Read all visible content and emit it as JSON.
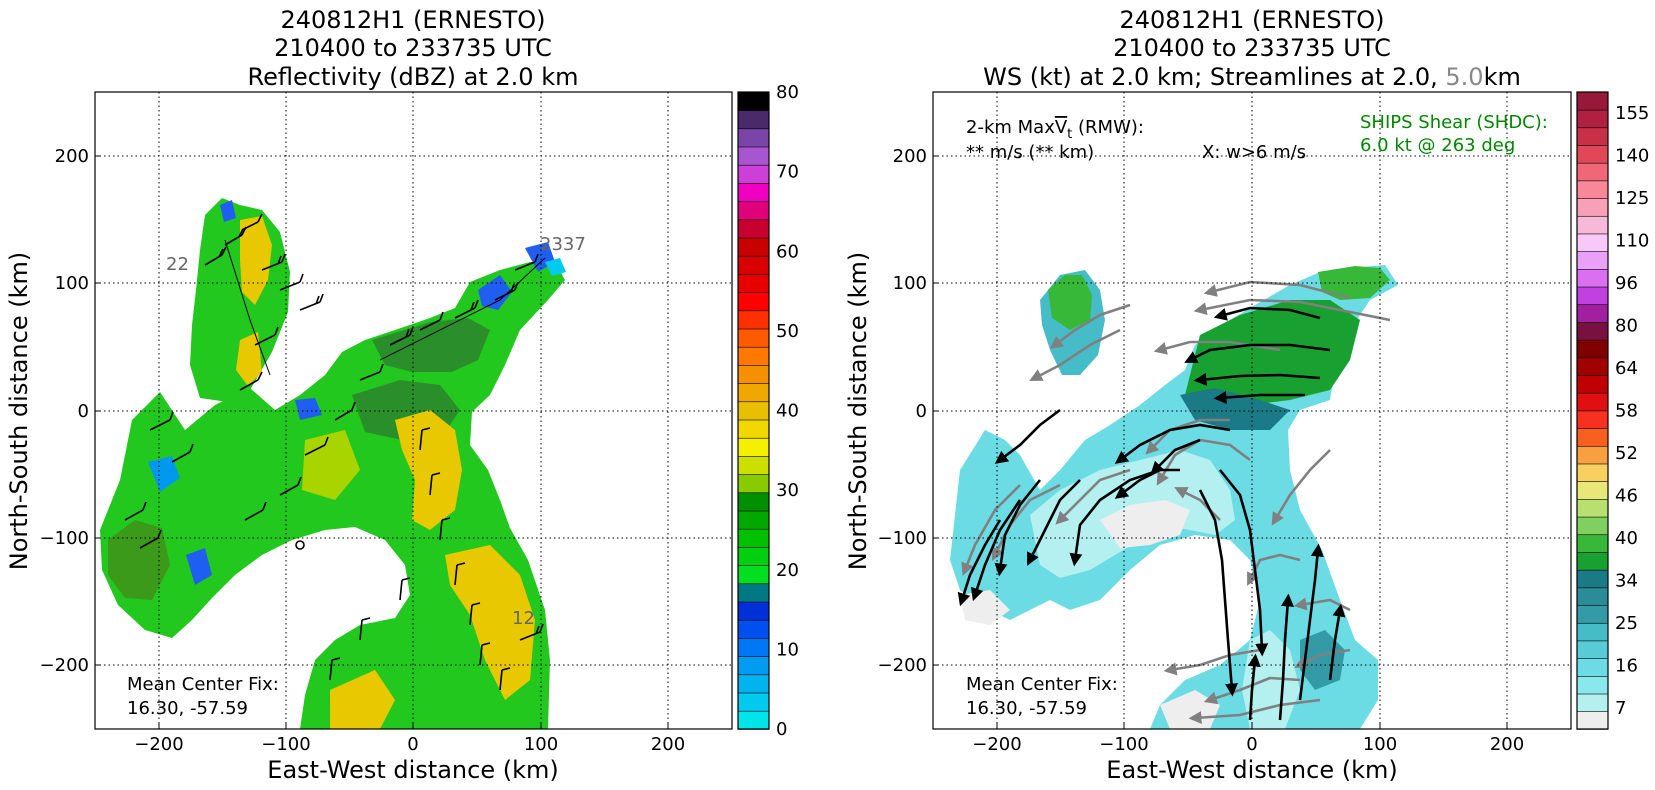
{
  "chart_data": [
    {
      "type": "heatmap",
      "title_lines": [
        "240812H1 (ERNESTO)",
        "210400 to 233735 UTC",
        "Reflectivity (dBZ) at 2.0 km"
      ],
      "xlabel": "East-West distance (km)",
      "ylabel": "North-South distance (km)",
      "xlim": [
        -250,
        250
      ],
      "ylim": [
        -250,
        250
      ],
      "xticks": [
        -200,
        -100,
        0,
        100,
        200
      ],
      "yticks": [
        -200,
        -100,
        0,
        100,
        200
      ],
      "grid": true,
      "colorbar": {
        "ticks": [
          0,
          10,
          20,
          30,
          40,
          50,
          60,
          70,
          80
        ],
        "colors": [
          "#00e5ea",
          "#00cbee",
          "#00b4f0",
          "#009cf1",
          "#0078f5",
          "#0050f0",
          "#0030d8",
          "#007a82",
          "#00e020",
          "#00d010",
          "#00c000",
          "#00a800",
          "#009000",
          "#88cc00",
          "#cce000",
          "#f5f000",
          "#f0d800",
          "#e8c000",
          "#f0a800",
          "#f59000",
          "#ff7800",
          "#ff5a00",
          "#ff3000",
          "#ff0000",
          "#e80000",
          "#d80000",
          "#c80000",
          "#c80030",
          "#e0007a",
          "#f000c0",
          "#cc40d8",
          "#a855d0",
          "#7a45a8",
          "#4a2a6a",
          "#000000"
        ]
      },
      "annotations": {
        "center_fix_label": "Mean Center Fix:",
        "center_fix_value": "16.30, -57.59",
        "track_labels": [
          "2337",
          "22",
          "12"
        ]
      }
    },
    {
      "type": "heatmap",
      "title_lines": [
        "240812H1 (ERNESTO)",
        "210400 to 233735 UTC"
      ],
      "title_line3": {
        "part1": "WS (kt) at 2.0 km; Streamlines at 2.0, ",
        "part2": "5.0",
        "part3": "km",
        "part2_color": "#888888"
      },
      "xlabel": "East-West distance (km)",
      "ylabel": "North-South distance (km)",
      "xlim": [
        -250,
        250
      ],
      "ylim": [
        -250,
        250
      ],
      "xticks": [
        -200,
        -100,
        0,
        100,
        200
      ],
      "yticks": [
        -200,
        -100,
        0,
        100,
        200
      ],
      "grid": true,
      "colorbar": {
        "ticks": [
          7,
          16,
          25,
          34,
          40,
          46,
          52,
          58,
          64,
          80,
          96,
          110,
          125,
          140,
          155
        ],
        "colors": [
          "#eeeeee",
          "#b4f0f0",
          "#88e8ec",
          "#6cdce4",
          "#58ccd6",
          "#46bcc8",
          "#349aa6",
          "#2a8c96",
          "#1a7a86",
          "#18a030",
          "#38b838",
          "#80d060",
          "#b8e070",
          "#e8e878",
          "#f8d060",
          "#f8a040",
          "#f86020",
          "#f83020",
          "#e01010",
          "#c00000",
          "#a00000",
          "#800000",
          "#7a1040",
          "#a020a0",
          "#c040e0",
          "#d870f0",
          "#e8a0f8",
          "#f8c8f8",
          "#f8b8d8",
          "#f8a0b8",
          "#f88898",
          "#f06878",
          "#e04858",
          "#c83048",
          "#b02040",
          "#98183a"
        ]
      },
      "annotations": {
        "maxvt_line1": "2-km Max",
        "maxvt_line1b": "V",
        "maxvt_line1c": "t",
        "maxvt_line1d": " (RMW):",
        "maxvt_line2": "** m/s (** km)",
        "updraft_note": "X: w>6 m/s",
        "shear_line1": "SHIPS Shear (SHDC):",
        "shear_line2": "6.0 kt @ 263 deg",
        "shear_color": "#008800",
        "center_fix_label": "Mean Center Fix:",
        "center_fix_value": "16.30, -57.59"
      }
    }
  ]
}
